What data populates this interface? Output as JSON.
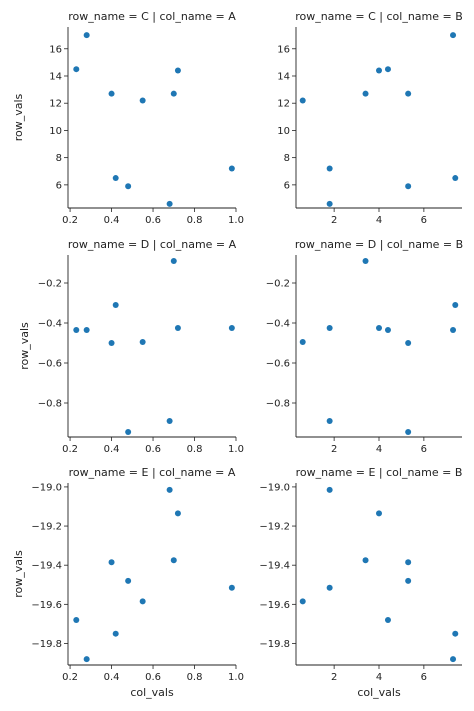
{
  "chart_data": {
    "type": "scatter",
    "marker_color": "#1f77b4",
    "grid": false,
    "xlabel": "col_vals",
    "ylabel": "row_vals",
    "rows": [
      {
        "ylim": [
          4.3,
          17.6
        ],
        "yticks": [
          4,
          6,
          8,
          10,
          12,
          14,
          16
        ],
        "ytick_labels": [
          "4",
          "6",
          "8",
          "10",
          "12",
          "14",
          "16"
        ],
        "panels": [
          {
            "title": "row_name = C | col_name = A",
            "x": [
              0.23,
              0.28,
              0.4,
              0.42,
              0.48,
              0.55,
              0.68,
              0.7,
              0.72,
              0.98
            ],
            "y": [
              14.5,
              17.0,
              12.7,
              6.5,
              5.9,
              12.2,
              4.6,
              12.7,
              14.4,
              7.2
            ]
          },
          {
            "title": "row_name = C | col_name = B",
            "x": [
              0.6,
              1.8,
              1.8,
              3.4,
              4.0,
              4.4,
              5.3,
              5.3,
              7.3,
              7.4
            ],
            "y": [
              12.2,
              7.2,
              4.6,
              12.7,
              14.4,
              14.5,
              12.7,
              5.9,
              17.0,
              6.5
            ]
          }
        ]
      },
      {
        "ylim": [
          -0.97,
          -0.06
        ],
        "yticks": [
          -0.8,
          -0.6,
          -0.4,
          -0.2
        ],
        "ytick_labels": [
          "−0.8",
          "−0.6",
          "−0.4",
          "−0.2"
        ],
        "panels": [
          {
            "title": "row_name = D | col_name = A",
            "x": [
              0.23,
              0.28,
              0.4,
              0.42,
              0.48,
              0.55,
              0.68,
              0.7,
              0.72,
              0.98
            ],
            "y": [
              -0.435,
              -0.435,
              -0.5,
              -0.31,
              -0.945,
              -0.495,
              -0.89,
              -0.09,
              -0.425,
              -0.425
            ]
          },
          {
            "title": "row_name = D | col_name = B",
            "x": [
              0.6,
              1.8,
              1.8,
              3.4,
              4.0,
              4.4,
              5.3,
              5.3,
              7.3,
              7.4
            ],
            "y": [
              -0.495,
              -0.425,
              -0.89,
              -0.09,
              -0.425,
              -0.435,
              -0.5,
              -0.945,
              -0.435,
              -0.31
            ]
          }
        ]
      },
      {
        "ylim": [
          -19.91,
          -18.98
        ],
        "yticks": [
          -19.8,
          -19.6,
          -19.4,
          -19.2,
          -19.0
        ],
        "ytick_labels": [
          "−19.8",
          "−19.6",
          "−19.4",
          "−19.2",
          "−19.0"
        ],
        "panels": [
          {
            "title": "row_name = E | col_name = A",
            "x": [
              0.23,
              0.28,
              0.4,
              0.42,
              0.48,
              0.55,
              0.68,
              0.7,
              0.72,
              0.98
            ],
            "y": [
              -19.68,
              -19.88,
              -19.385,
              -19.75,
              -19.48,
              -19.585,
              -19.015,
              -19.375,
              -19.135,
              -19.515
            ]
          },
          {
            "title": "row_name = E | col_name = B",
            "x": [
              0.6,
              1.8,
              1.8,
              3.4,
              4.0,
              4.4,
              5.3,
              5.3,
              7.3,
              7.4
            ],
            "y": [
              -19.585,
              -19.015,
              -19.515,
              -19.375,
              -19.135,
              -19.68,
              -19.385,
              -19.48,
              -19.88,
              -19.75
            ]
          }
        ]
      }
    ],
    "columns": [
      {
        "xlim": [
          0.19,
          1.0
        ],
        "xticks": [
          0.2,
          0.4,
          0.6,
          0.8,
          1.0
        ],
        "xtick_labels": [
          "0.2",
          "0.4",
          "0.6",
          "0.8",
          "1.0"
        ]
      },
      {
        "xlim": [
          0.3,
          7.7
        ],
        "xticks": [
          2,
          4,
          6
        ],
        "xtick_labels": [
          "2",
          "4",
          "6"
        ]
      }
    ]
  }
}
